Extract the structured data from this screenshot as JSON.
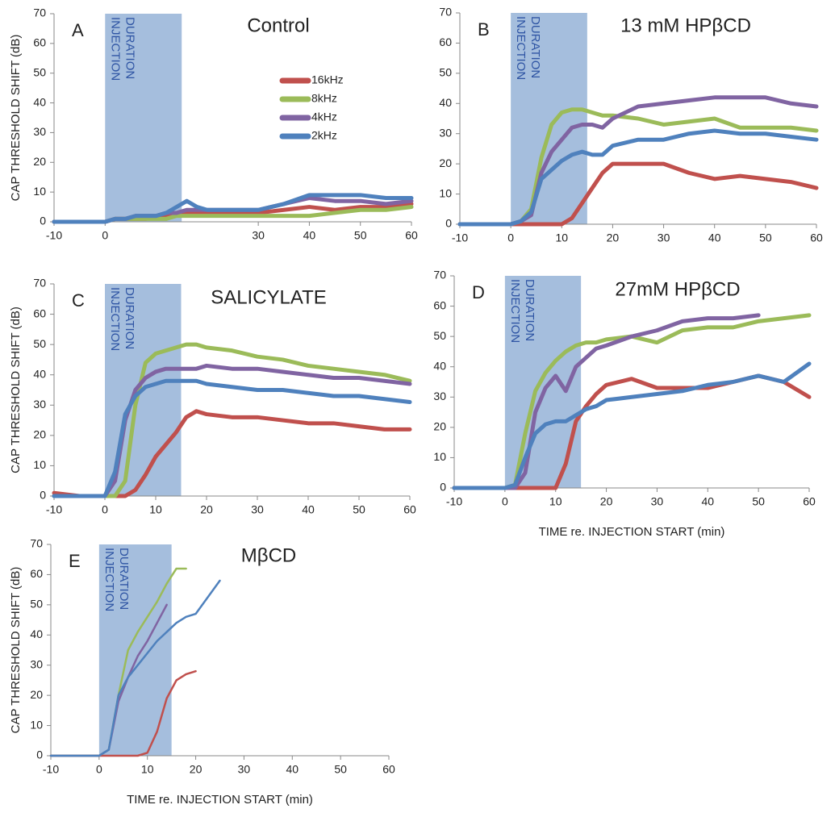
{
  "chart_data": [
    {
      "type": "line",
      "letter": "A",
      "title": "Control",
      "y_label": "CAP THRESHOLD SHIFT (dB)",
      "annotation": [
        "INJECTION",
        "DURATION"
      ],
      "shade": [
        0,
        15
      ],
      "xlim": [
        -10,
        60
      ],
      "xticks": [
        -10,
        0,
        30,
        40,
        50,
        60
      ],
      "ylim": [
        0,
        70
      ],
      "yticks": [
        0,
        10,
        20,
        30,
        40,
        50,
        60,
        70
      ],
      "legend": "upper center",
      "x": [
        -10,
        -5,
        0,
        2,
        4,
        6,
        8,
        10,
        12,
        14,
        16,
        18,
        20,
        25,
        30,
        35,
        40,
        45,
        50,
        55,
        60
      ],
      "series": [
        {
          "name": "16kHz",
          "color": "#c0504d",
          "values": [
            0,
            0,
            0,
            1,
            1,
            1,
            1,
            2,
            2,
            3,
            3,
            3,
            3,
            3,
            3,
            4,
            5,
            4,
            5,
            5,
            6
          ]
        },
        {
          "name": "8kHz",
          "color": "#9bbb59",
          "values": [
            0,
            0,
            0,
            1,
            1,
            1,
            1,
            1,
            1,
            2,
            2,
            2,
            2,
            2,
            2,
            2,
            2,
            3,
            4,
            4,
            5
          ]
        },
        {
          "name": "4kHz",
          "color": "#8064a2",
          "values": [
            0,
            0,
            0,
            1,
            1,
            2,
            2,
            2,
            3,
            3,
            4,
            4,
            4,
            4,
            4,
            6,
            8,
            7,
            7,
            6,
            7
          ]
        },
        {
          "name": "2kHz",
          "color": "#4f81bd",
          "values": [
            0,
            0,
            0,
            1,
            1,
            2,
            2,
            2,
            3,
            5,
            7,
            5,
            4,
            4,
            4,
            6,
            9,
            9,
            9,
            8,
            8
          ]
        }
      ]
    },
    {
      "type": "line",
      "letter": "B",
      "title": "13 mM HPβCD",
      "annotation": [
        "INJECTION",
        "DURATION"
      ],
      "shade": [
        0,
        15
      ],
      "xlim": [
        -10,
        60
      ],
      "xticks": [
        -10,
        0,
        10,
        20,
        30,
        40,
        50,
        60
      ],
      "ylim": [
        0,
        70
      ],
      "yticks": [
        0,
        10,
        20,
        30,
        40,
        50,
        60,
        70
      ],
      "x": [
        -10,
        -5,
        0,
        2,
        4,
        6,
        8,
        10,
        12,
        14,
        16,
        18,
        20,
        25,
        30,
        35,
        40,
        45,
        50,
        55,
        60
      ],
      "series": [
        {
          "color": "#c0504d",
          "values": [
            0,
            0,
            0,
            0,
            0,
            0,
            0,
            0,
            2,
            7,
            12,
            17,
            20,
            20,
            20,
            17,
            15,
            16,
            15,
            14,
            12
          ]
        },
        {
          "color": "#9bbb59",
          "values": [
            0,
            0,
            0,
            1,
            5,
            22,
            33,
            37,
            38,
            38,
            37,
            36,
            36,
            35,
            33,
            34,
            35,
            32,
            32,
            32,
            31
          ]
        },
        {
          "color": "#8064a2",
          "values": [
            0,
            0,
            0,
            1,
            3,
            17,
            24,
            28,
            32,
            33,
            33,
            32,
            35,
            39,
            40,
            41,
            42,
            42,
            42,
            40,
            39
          ]
        },
        {
          "color": "#4f81bd",
          "values": [
            0,
            0,
            0,
            1,
            4,
            15,
            18,
            21,
            23,
            24,
            23,
            23,
            26,
            28,
            28,
            30,
            31,
            30,
            30,
            29,
            28
          ]
        }
      ]
    },
    {
      "type": "line",
      "letter": "C",
      "title": "SALICYLATE",
      "y_label": "CAP THRESHOLD SHIFT (dB)",
      "annotation": [
        "INJECTION",
        "DURATION"
      ],
      "shade": [
        0,
        15
      ],
      "xlim": [
        -10,
        60
      ],
      "xticks": [
        -10,
        0,
        10,
        20,
        30,
        40,
        50,
        60
      ],
      "ylim": [
        0,
        70
      ],
      "yticks": [
        0,
        10,
        20,
        30,
        40,
        50,
        60,
        70
      ],
      "x": [
        -10,
        -5,
        0,
        2,
        4,
        6,
        8,
        10,
        12,
        14,
        16,
        18,
        20,
        25,
        30,
        35,
        40,
        45,
        50,
        55,
        60
      ],
      "series": [
        {
          "color": "#c0504d",
          "values": [
            1,
            0,
            0,
            0,
            0,
            2,
            7,
            13,
            17,
            21,
            26,
            28,
            27,
            26,
            26,
            25,
            24,
            24,
            23,
            22,
            22
          ]
        },
        {
          "color": "#9bbb59",
          "values": [
            0,
            0,
            0,
            0,
            5,
            30,
            44,
            47,
            48,
            49,
            50,
            50,
            49,
            48,
            46,
            45,
            43,
            42,
            41,
            40,
            38
          ]
        },
        {
          "color": "#8064a2",
          "values": [
            0,
            0,
            0,
            5,
            25,
            35,
            39,
            41,
            42,
            42,
            42,
            42,
            43,
            42,
            42,
            41,
            40,
            39,
            39,
            38,
            37
          ]
        },
        {
          "color": "#4f81bd",
          "values": [
            0,
            0,
            0,
            8,
            27,
            33,
            36,
            37,
            38,
            38,
            38,
            38,
            37,
            36,
            35,
            35,
            34,
            33,
            33,
            32,
            31
          ]
        }
      ]
    },
    {
      "type": "line",
      "letter": "D",
      "title": "27mM HPβCD",
      "x_label": "TIME re. INJECTION START (min)",
      "annotation": [
        "INJECTION",
        "DURATION"
      ],
      "shade": [
        0,
        15
      ],
      "xlim": [
        -10,
        60
      ],
      "xticks": [
        -10,
        0,
        10,
        20,
        30,
        40,
        50,
        60
      ],
      "ylim": [
        0,
        70
      ],
      "yticks": [
        0,
        10,
        20,
        30,
        40,
        50,
        60,
        70
      ],
      "x": [
        -10,
        -5,
        0,
        2,
        4,
        6,
        8,
        10,
        12,
        14,
        16,
        18,
        20,
        25,
        30,
        35,
        40,
        45,
        50,
        55,
        60
      ],
      "series": [
        {
          "color": "#c0504d",
          "values": [
            0,
            0,
            0,
            0,
            0,
            0,
            0,
            0,
            8,
            22,
            27,
            31,
            34,
            36,
            33,
            33,
            33,
            35,
            37,
            35,
            30
          ]
        },
        {
          "color": "#9bbb59",
          "values": [
            0,
            0,
            0,
            1,
            18,
            32,
            38,
            42,
            45,
            47,
            48,
            48,
            49,
            50,
            48,
            52,
            53,
            53,
            55,
            56,
            57
          ]
        },
        {
          "color": "#8064a2",
          "values": [
            0,
            0,
            0,
            0,
            5,
            25,
            33,
            37,
            32,
            40,
            43,
            46,
            47,
            50,
            52,
            55,
            56,
            56,
            57,
            null,
            null
          ]
        },
        {
          "color": "#4f81bd",
          "values": [
            0,
            0,
            0,
            1,
            10,
            18,
            21,
            22,
            22,
            24,
            26,
            27,
            29,
            30,
            31,
            32,
            34,
            35,
            37,
            35,
            41
          ]
        }
      ]
    },
    {
      "type": "line",
      "letter": "E",
      "title": "MβCD",
      "y_label": "CAP THRESHOLD SHIFT (dB)",
      "x_label": "TIME re. INJECTION START (min)",
      "annotation": [
        "INJECTION",
        "DURATION"
      ],
      "shade": [
        0,
        15
      ],
      "xlim": [
        -10,
        60
      ],
      "xticks": [
        -10,
        0,
        10,
        20,
        30,
        40,
        50,
        60
      ],
      "ylim": [
        0,
        70
      ],
      "yticks": [
        0,
        10,
        20,
        30,
        40,
        50,
        60,
        70
      ],
      "x": [
        -10,
        -5,
        0,
        2,
        4,
        6,
        8,
        10,
        12,
        14,
        16,
        18,
        20,
        25
      ],
      "series": [
        {
          "color": "#c0504d",
          "values": [
            0,
            0,
            0,
            0,
            0,
            0,
            0,
            1,
            8,
            19,
            25,
            27,
            28,
            null
          ]
        },
        {
          "color": "#9bbb59",
          "values": [
            0,
            0,
            0,
            2,
            20,
            35,
            41,
            46,
            51,
            57,
            62,
            62,
            null,
            null
          ]
        },
        {
          "color": "#8064a2",
          "values": [
            0,
            0,
            0,
            2,
            18,
            26,
            33,
            38,
            44,
            50,
            null,
            null,
            null,
            null
          ]
        },
        {
          "color": "#4f81bd",
          "values": [
            0,
            0,
            0,
            2,
            20,
            26,
            30,
            34,
            38,
            41,
            44,
            46,
            47,
            58
          ]
        }
      ]
    }
  ]
}
